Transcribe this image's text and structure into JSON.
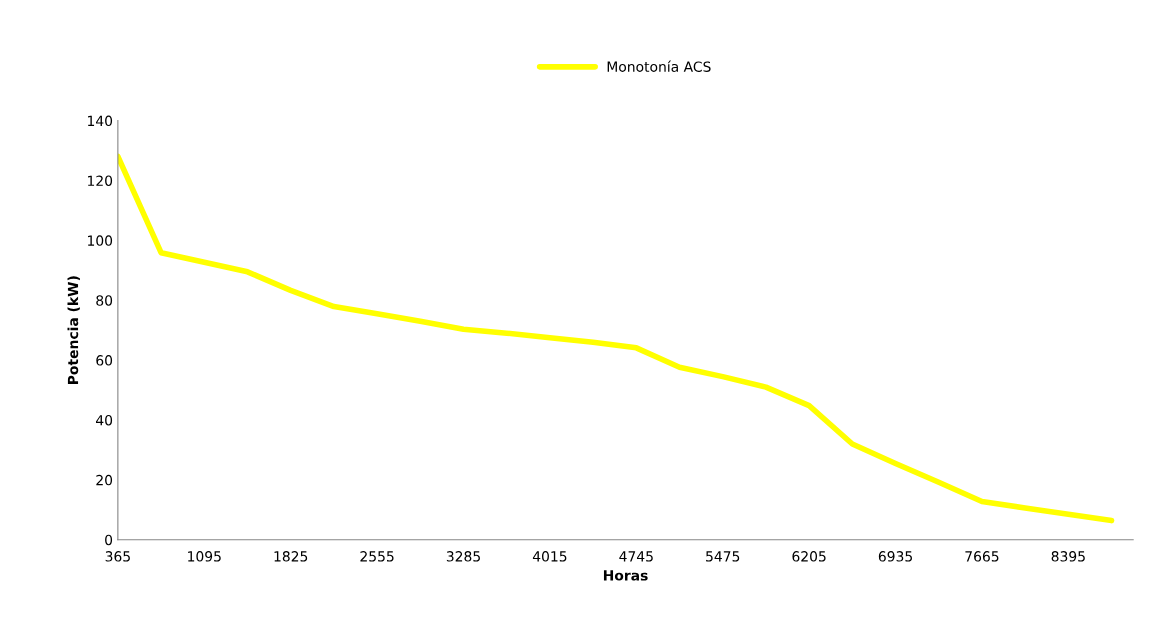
{
  "chart_data": {
    "type": "line",
    "xlabel": "Horas",
    "ylabel": "Potencia (kW)",
    "categories": [
      "365",
      null,
      "1095",
      null,
      "1825",
      null,
      "2555",
      null,
      "3285",
      null,
      "4015",
      null,
      "4745",
      null,
      "5475",
      null,
      "6205",
      null,
      "6935",
      null,
      "7665",
      null,
      "8395",
      null
    ],
    "series": [
      {
        "name": "Monotonía ACS",
        "color": "#ffff00",
        "values": [
          128.1,
          95.9,
          92.7,
          89.5,
          83.3,
          77.9,
          75.5,
          73,
          70.3,
          69,
          67.5,
          66,
          64.1,
          57.6,
          54.5,
          51.0,
          44.8,
          32.0,
          25.5,
          19.2,
          12.8,
          10.6,
          8.5,
          6.4
        ]
      }
    ],
    "ylim": [
      0,
      140
    ],
    "yticks": [
      0,
      20,
      40,
      60,
      80,
      100,
      120,
      140
    ],
    "grid": false,
    "legend": "top",
    "marker": "none",
    "line_style": "solid"
  }
}
